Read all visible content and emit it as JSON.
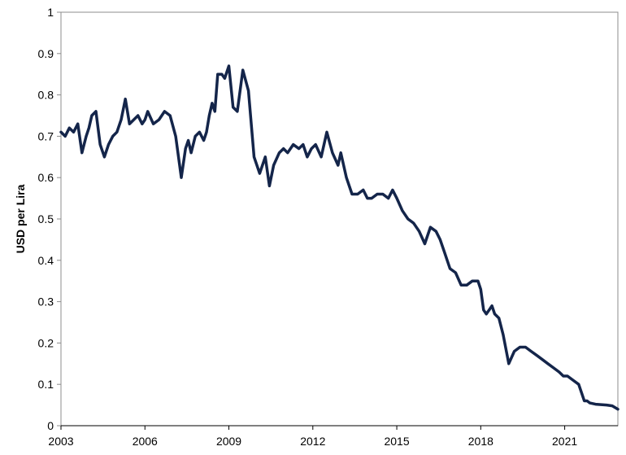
{
  "chart_data": {
    "type": "line",
    "title": "",
    "xlabel": "",
    "ylabel": "USD per Lira",
    "xlim": [
      2003,
      2022.9
    ],
    "ylim": [
      0,
      1
    ],
    "x_ticks": [
      2003,
      2006,
      2009,
      2012,
      2015,
      2018,
      2021
    ],
    "x_tick_labels": [
      "2003",
      "2006",
      "2009",
      "2012",
      "2015",
      "2018",
      "2021"
    ],
    "y_ticks": [
      0,
      0.1,
      0.2,
      0.3,
      0.4,
      0.5,
      0.6,
      0.7,
      0.8,
      0.9,
      1
    ],
    "y_tick_labels": [
      "0",
      "0.1",
      "0.2",
      "0.3",
      "0.4",
      "0.5",
      "0.6",
      "0.7",
      "0.8",
      "0.9",
      "1"
    ],
    "grid": false,
    "legend": "none",
    "line_color": "#14254a",
    "series": [
      {
        "x": [
          2003.0,
          2003.15,
          2003.3,
          2003.45,
          2003.6,
          2003.75,
          2003.9,
          2004.0,
          2004.1,
          2004.25,
          2004.4,
          2004.55,
          2004.7,
          2004.85,
          2005.0,
          2005.15,
          2005.3,
          2005.45,
          2005.6,
          2005.75,
          2005.9,
          2006.0,
          2006.05,
          2006.1,
          2006.3,
          2006.5,
          2006.7,
          2006.9,
          2007.1,
          2007.3,
          2007.45,
          2007.55,
          2007.65,
          2007.8,
          2007.95,
          2008.1,
          2008.2,
          2008.3,
          2008.4,
          2008.5,
          2008.6,
          2008.75,
          2008.85,
          2009.0,
          2009.15,
          2009.3,
          2009.5,
          2009.7,
          2009.9,
          2010.1,
          2010.3,
          2010.45,
          2010.6,
          2010.8,
          2010.95,
          2011.1,
          2011.3,
          2011.5,
          2011.65,
          2011.8,
          2011.95,
          2012.1,
          2012.3,
          2012.5,
          2012.7,
          2012.9,
          2013.0,
          2013.2,
          2013.4,
          2013.6,
          2013.8,
          2013.95,
          2014.1,
          2014.3,
          2014.5,
          2014.7,
          2014.85,
          2015.0,
          2015.2,
          2015.4,
          2015.6,
          2015.8,
          2016.0,
          2016.2,
          2016.4,
          2016.55,
          2016.7,
          2016.9,
          2017.1,
          2017.3,
          2017.5,
          2017.7,
          2017.9,
          2018.0,
          2018.1,
          2018.2,
          2018.3,
          2018.4,
          2018.5,
          2018.65,
          2018.8,
          2019.0,
          2019.2,
          2019.4,
          2019.6,
          2019.8,
          2020.0,
          2020.2,
          2020.4,
          2020.6,
          2020.8,
          2020.95,
          2021.1,
          2021.3,
          2021.5,
          2021.6,
          2021.7,
          2021.8,
          2021.9,
          2022.1,
          2022.3,
          2022.5,
          2022.7,
          2022.9
        ],
        "y": [
          0.71,
          0.7,
          0.72,
          0.71,
          0.73,
          0.66,
          0.7,
          0.72,
          0.75,
          0.76,
          0.68,
          0.65,
          0.68,
          0.7,
          0.71,
          0.74,
          0.79,
          0.73,
          0.74,
          0.75,
          0.73,
          0.74,
          0.75,
          0.76,
          0.73,
          0.74,
          0.76,
          0.75,
          0.7,
          0.6,
          0.67,
          0.69,
          0.66,
          0.7,
          0.71,
          0.69,
          0.71,
          0.75,
          0.78,
          0.76,
          0.85,
          0.85,
          0.84,
          0.87,
          0.77,
          0.76,
          0.86,
          0.81,
          0.65,
          0.61,
          0.65,
          0.58,
          0.63,
          0.66,
          0.67,
          0.66,
          0.68,
          0.67,
          0.68,
          0.65,
          0.67,
          0.68,
          0.65,
          0.71,
          0.66,
          0.63,
          0.66,
          0.6,
          0.56,
          0.56,
          0.57,
          0.55,
          0.55,
          0.56,
          0.56,
          0.55,
          0.57,
          0.55,
          0.52,
          0.5,
          0.49,
          0.47,
          0.44,
          0.48,
          0.47,
          0.45,
          0.42,
          0.38,
          0.37,
          0.34,
          0.34,
          0.35,
          0.35,
          0.33,
          0.28,
          0.27,
          0.28,
          0.29,
          0.27,
          0.26,
          0.22,
          0.15,
          0.18,
          0.19,
          0.19,
          0.18,
          0.17,
          0.16,
          0.15,
          0.14,
          0.13,
          0.12,
          0.12,
          0.11,
          0.1,
          0.08,
          0.06,
          0.06,
          0.055,
          0.052,
          0.051,
          0.05,
          0.048,
          0.04
        ]
      }
    ]
  }
}
